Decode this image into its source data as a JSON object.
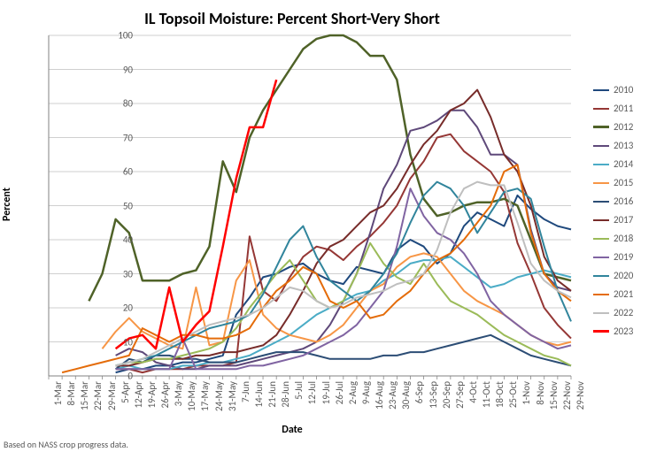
{
  "chart": {
    "title": "IL Topsoil Moisture: Percent Short-Very Short",
    "ylabel": "Percent",
    "xlabel": "Date",
    "footnote": "Based on NASS crop progress data.",
    "title_fontsize": 18,
    "label_fontsize": 12,
    "tick_fontsize": 11,
    "background_color": "#ffffff",
    "plot_background_color": "#ffffff",
    "axis_color": "#808080",
    "grid_color": "#bfbfbf",
    "ylim": [
      0,
      100
    ],
    "ytick_step": 10,
    "x_categories": [
      "1-Mar",
      "8-Mar",
      "15-Mar",
      "22-Mar",
      "29-Mar",
      "5-Apr",
      "12-Apr",
      "19-Apr",
      "26-Apr",
      "3-May",
      "10-May",
      "17-May",
      "24-May",
      "31-May",
      "7-Jun",
      "14-Jun",
      "21-Jun",
      "28-Jun",
      "5-Jul",
      "12-Jul",
      "19-Jul",
      "26-Jul",
      "2-Aug",
      "9-Aug",
      "16-Aug",
      "23-Aug",
      "30-Aug",
      "6-Sep",
      "13-Sep",
      "20-Sep",
      "27-Sep",
      "4-Oct",
      "11-Oct",
      "18-Oct",
      "25-Oct",
      "1-Nov",
      "8-Nov",
      "15-Nov",
      "22-Nov",
      "29-Nov"
    ],
    "series": [
      {
        "name": "2010",
        "color": "#1f497d",
        "width": 2,
        "values": [
          null,
          null,
          null,
          null,
          null,
          1,
          2,
          2,
          3,
          3,
          4,
          4,
          5,
          6,
          18,
          23,
          29,
          30,
          32,
          33,
          30,
          28,
          27,
          32,
          31,
          30,
          37,
          40,
          38,
          33,
          36,
          44,
          48,
          46,
          44,
          53,
          49,
          46,
          44,
          43
        ]
      },
      {
        "name": "2011",
        "color": "#953735",
        "width": 2,
        "values": [
          null,
          null,
          null,
          null,
          null,
          2,
          2,
          1,
          2,
          2,
          2,
          3,
          3,
          3,
          4,
          41,
          25,
          22,
          29,
          35,
          38,
          37,
          34,
          38,
          41,
          45,
          50,
          58,
          63,
          70,
          71,
          66,
          63,
          60,
          54,
          39,
          30,
          20,
          15,
          11
        ]
      },
      {
        "name": "2012",
        "color": "#4f6228",
        "width": 2.5,
        "values": [
          null,
          null,
          null,
          22,
          30,
          46,
          42,
          28,
          28,
          28,
          30,
          31,
          38,
          63,
          54,
          70,
          78,
          84,
          90,
          96,
          99,
          100,
          100,
          98,
          94,
          94,
          87,
          65,
          52,
          47,
          48,
          50,
          51,
          51,
          52,
          50,
          40,
          30,
          29,
          28
        ]
      },
      {
        "name": "2013",
        "color": "#5f497a",
        "width": 2,
        "values": [
          null,
          null,
          null,
          null,
          null,
          6,
          8,
          7,
          4,
          3,
          2,
          2,
          3,
          3,
          3,
          4,
          5,
          6,
          7,
          8,
          10,
          15,
          22,
          30,
          42,
          55,
          62,
          72,
          73,
          75,
          78,
          78,
          73,
          65,
          65,
          62,
          43,
          30,
          26,
          25
        ]
      },
      {
        "name": "2014",
        "color": "#4bacc6",
        "width": 2,
        "values": [
          null,
          null,
          null,
          null,
          null,
          2,
          3,
          2,
          2,
          2,
          3,
          3,
          4,
          4,
          5,
          6,
          8,
          10,
          12,
          15,
          18,
          20,
          22,
          24,
          25,
          28,
          30,
          33,
          34,
          34,
          35,
          32,
          29,
          26,
          27,
          29,
          30,
          31,
          30,
          29
        ]
      },
      {
        "name": "2015",
        "color": "#f79646",
        "width": 2,
        "values": [
          null,
          null,
          null,
          null,
          8,
          13,
          17,
          13,
          11,
          9,
          8,
          26,
          9,
          10,
          28,
          34,
          18,
          14,
          12,
          11,
          10,
          12,
          15,
          20,
          25,
          27,
          32,
          35,
          36,
          35,
          30,
          25,
          22,
          20,
          18,
          15,
          12,
          10,
          9,
          10
        ]
      },
      {
        "name": "2016",
        "color": "#2c4d75",
        "width": 2,
        "values": [
          null,
          null,
          null,
          null,
          null,
          2,
          5,
          4,
          6,
          6,
          5,
          5,
          4,
          4,
          4,
          5,
          6,
          7,
          7,
          7,
          6,
          5,
          5,
          5,
          5,
          6,
          6,
          7,
          7,
          8,
          9,
          10,
          11,
          12,
          10,
          8,
          6,
          5,
          4,
          3
        ]
      },
      {
        "name": "2017",
        "color": "#772c2a",
        "width": 2,
        "values": [
          null,
          null,
          null,
          null,
          null,
          3,
          3,
          4,
          5,
          5,
          5,
          6,
          6,
          7,
          7,
          8,
          9,
          12,
          18,
          25,
          33,
          38,
          40,
          44,
          48,
          50,
          55,
          62,
          68,
          72,
          78,
          80,
          84,
          76,
          65,
          60,
          50,
          35,
          28,
          25
        ]
      },
      {
        "name": "2018",
        "color": "#9bbb59",
        "width": 2,
        "values": [
          null,
          null,
          null,
          null,
          null,
          3,
          4,
          4,
          5,
          5,
          6,
          7,
          8,
          10,
          14,
          20,
          25,
          30,
          34,
          28,
          22,
          20,
          22,
          30,
          39,
          33,
          29,
          27,
          33,
          27,
          22,
          20,
          18,
          15,
          12,
          10,
          8,
          6,
          5,
          3
        ]
      },
      {
        "name": "2019",
        "color": "#8064a2",
        "width": 2,
        "values": [
          null,
          null,
          null,
          null,
          null,
          2,
          2,
          2,
          2,
          2,
          11,
          2,
          2,
          2,
          2,
          3,
          3,
          4,
          5,
          6,
          8,
          10,
          12,
          15,
          20,
          25,
          38,
          55,
          47,
          42,
          40,
          36,
          30,
          22,
          18,
          15,
          12,
          10,
          8,
          9
        ]
      },
      {
        "name": "2020",
        "color": "#31859c",
        "width": 2,
        "values": [
          null,
          null,
          null,
          null,
          null,
          3,
          4,
          5,
          6,
          8,
          10,
          12,
          14,
          15,
          16,
          18,
          24,
          32,
          40,
          44,
          35,
          28,
          25,
          22,
          25,
          30,
          36,
          45,
          53,
          57,
          55,
          50,
          42,
          48,
          54,
          55,
          52,
          38,
          25,
          16
        ]
      },
      {
        "name": "2021",
        "color": "#e46c0a",
        "width": 2,
        "values": [
          null,
          1,
          2,
          3,
          4,
          5,
          6,
          14,
          12,
          10,
          12,
          12,
          11,
          11,
          12,
          14,
          20,
          25,
          28,
          32,
          30,
          22,
          20,
          22,
          17,
          18,
          22,
          25,
          30,
          34,
          36,
          40,
          45,
          50,
          60,
          62,
          42,
          30,
          25,
          22
        ]
      },
      {
        "name": "2022",
        "color": "#bfbfbf",
        "width": 2,
        "values": [
          null,
          null,
          null,
          null,
          null,
          3,
          4,
          5,
          7,
          9,
          11,
          13,
          15,
          16,
          17,
          18,
          20,
          23,
          26,
          25,
          22,
          20,
          21,
          23,
          24,
          25,
          27,
          28,
          30,
          37,
          48,
          55,
          57,
          56,
          56,
          45,
          33,
          28,
          25,
          23
        ]
      },
      {
        "name": "2023",
        "color": "#ff0000",
        "width": 2.5,
        "values": [
          null,
          null,
          null,
          null,
          null,
          8,
          11,
          12,
          8,
          26,
          10,
          15,
          19,
          38,
          58,
          73,
          73,
          87,
          null,
          null,
          null,
          null,
          null,
          null,
          null,
          null,
          null,
          null,
          null,
          null,
          null,
          null,
          null,
          null,
          null,
          null,
          null,
          null,
          null,
          null
        ]
      }
    ]
  }
}
